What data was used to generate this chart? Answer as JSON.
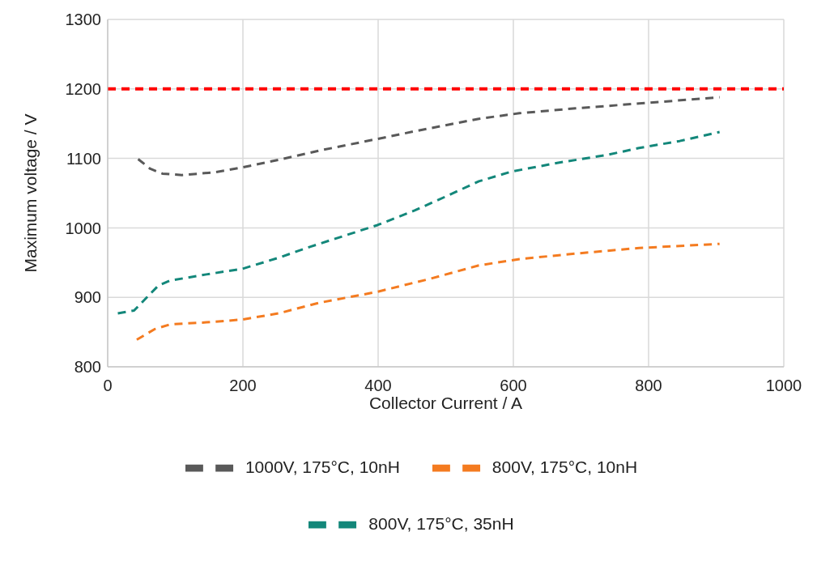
{
  "chart_data": {
    "type": "line",
    "xlabel": "Collector Current / A",
    "ylabel": "Maximum voltage / V",
    "xlim": [
      0,
      1000
    ],
    "xticks": [
      0,
      200,
      400,
      600,
      800,
      1000
    ],
    "ylim": [
      800,
      1300
    ],
    "yticks": [
      800,
      900,
      1000,
      1100,
      1200,
      1300
    ],
    "grid": true,
    "legend": "bottom",
    "line_style": "dashed",
    "marker": "none",
    "ref_lines": [
      {
        "axis": "y",
        "value": 1200,
        "color": "#ff0000",
        "line_style": "dashed"
      }
    ],
    "series": [
      {
        "name": "800V, 175°C, 35nH",
        "color": "#13877a",
        "x": [
          15,
          39,
          51,
          75,
          92,
          146,
          199,
          253,
          300,
          348,
          399,
          454,
          502,
          549,
          597,
          668,
          739,
          786,
          846,
          905
        ],
        "values": [
          877,
          881,
          893,
          917,
          924,
          933,
          941,
          957,
          973,
          988,
          1004,
          1025,
          1046,
          1067,
          1081,
          1094,
          1105,
          1115,
          1125,
          1138
        ]
      },
      {
        "name": "800V, 175°C, 10nH",
        "color": "#f47b20",
        "x": [
          43,
          69,
          92,
          146,
          199,
          253,
          312,
          399,
          478,
          549,
          609,
          692,
          786,
          905
        ],
        "values": [
          839,
          854,
          861,
          864,
          868,
          877,
          892,
          908,
          927,
          946,
          955,
          963,
          971,
          977
        ]
      },
      {
        "name": "1000V, 175°C, 10nH",
        "color": "#595959",
        "x": [
          45,
          63,
          81,
          110,
          158,
          199,
          253,
          312,
          399,
          454,
          549,
          609,
          692,
          786,
          905
        ],
        "values": [
          1099,
          1085,
          1078,
          1076,
          1080,
          1087,
          1098,
          1111,
          1128,
          1139,
          1157,
          1165,
          1172,
          1179,
          1188
        ]
      }
    ]
  }
}
